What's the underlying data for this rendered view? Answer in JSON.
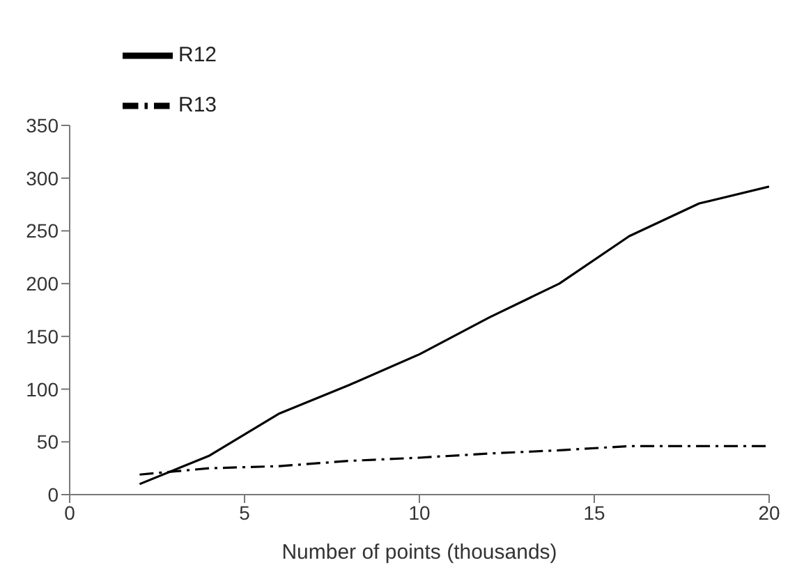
{
  "chart_data": {
    "type": "line",
    "xlabel": "Number of points (thousands)",
    "x": [
      2,
      4,
      6,
      8,
      10,
      12,
      14,
      16,
      18,
      20
    ],
    "series": [
      {
        "name": "R12",
        "color": "#000000",
        "line_style": "solid",
        "values": [
          10,
          37,
          77,
          104,
          133,
          168,
          200,
          245,
          276,
          292
        ]
      },
      {
        "name": "R13",
        "color": "#000000",
        "line_style": "dashdot",
        "values": [
          19,
          25,
          27,
          32,
          35,
          39,
          42,
          46,
          46,
          46
        ]
      }
    ],
    "xlim": [
      0,
      20
    ],
    "xticks": [
      0,
      5,
      10,
      15,
      20
    ],
    "ylim": [
      0,
      350
    ],
    "yticks": [
      0,
      50,
      100,
      150,
      200,
      250,
      300,
      350
    ],
    "grid": false,
    "legend": "top left",
    "marker": "none"
  }
}
